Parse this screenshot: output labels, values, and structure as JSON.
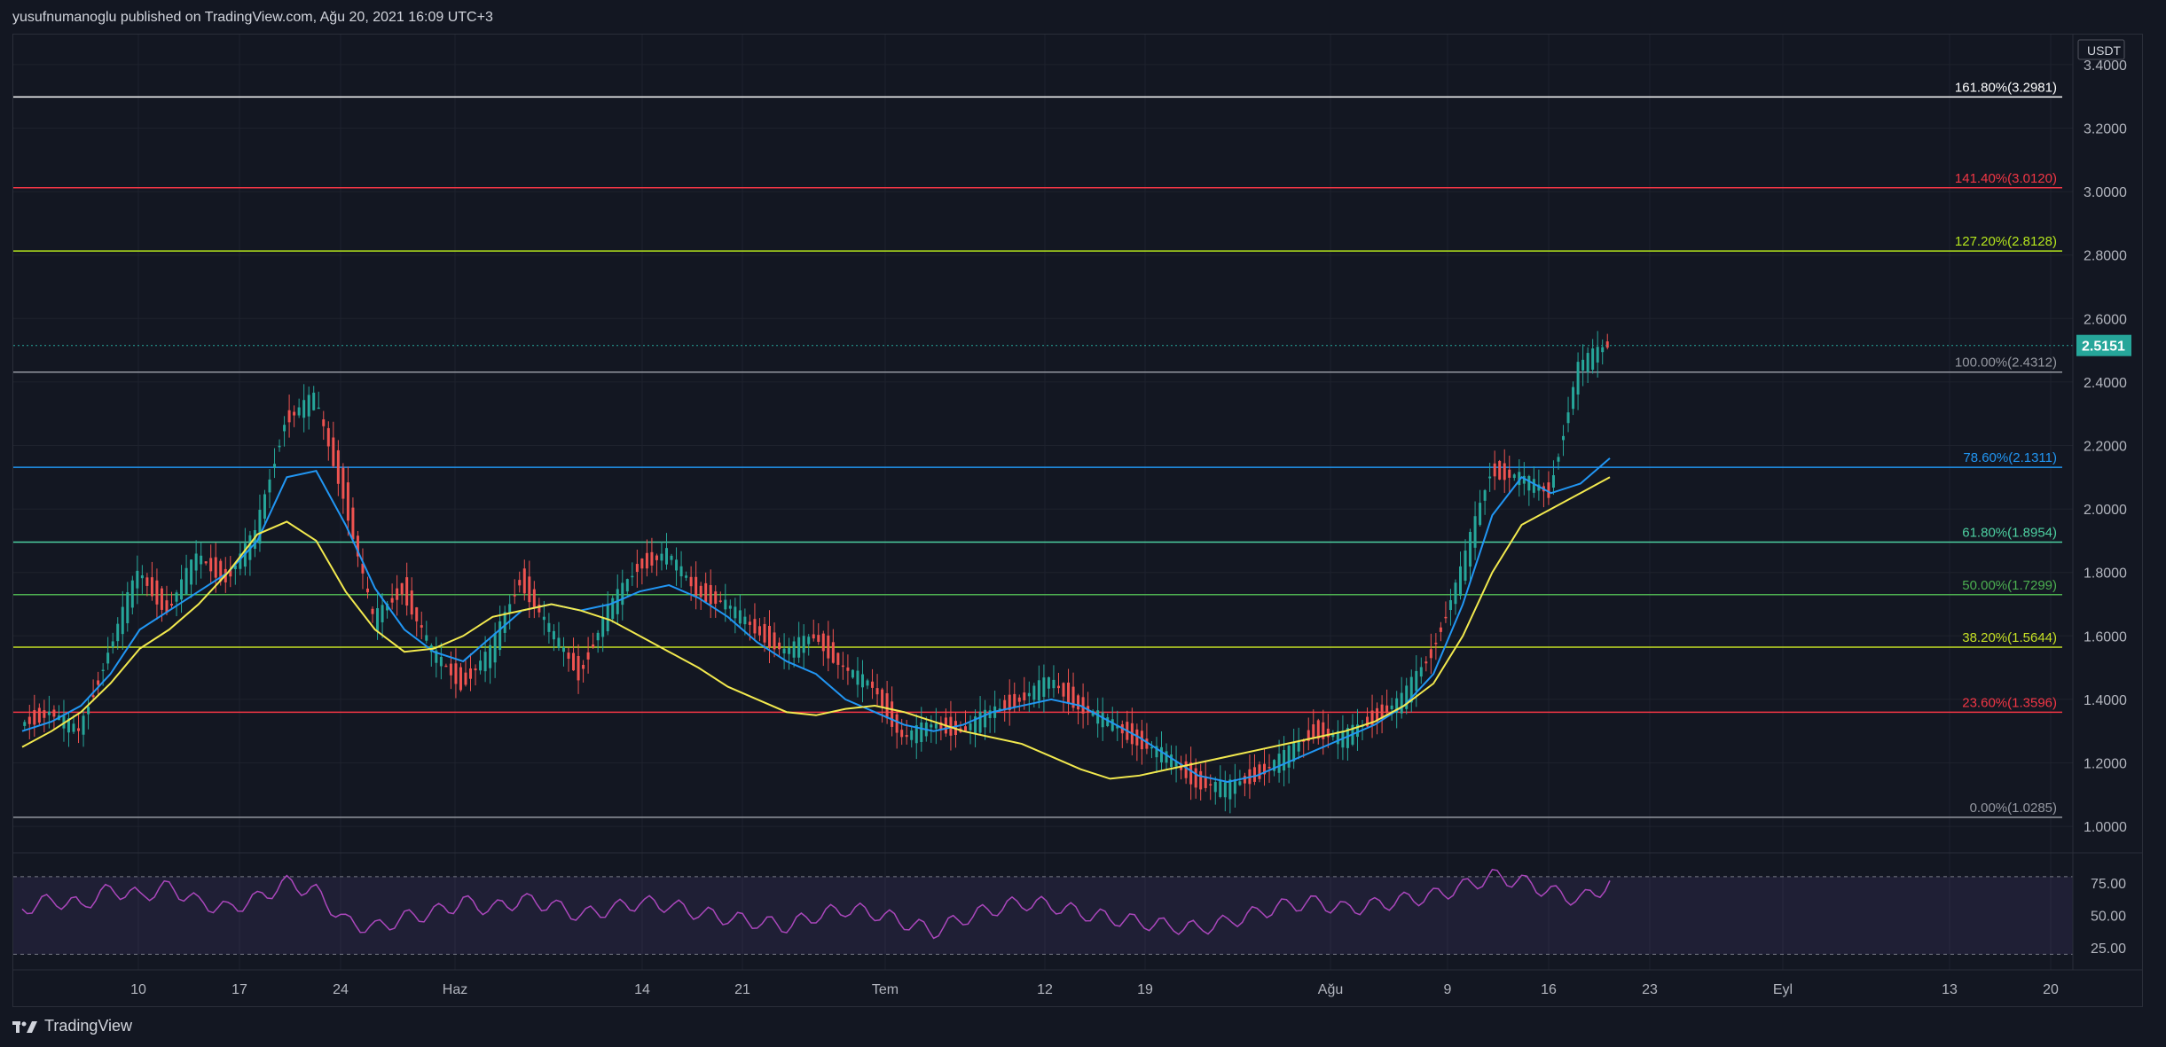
{
  "header": {
    "published_line": "yusufnumanoglu published on TradingView.com, Ağu 20, 2021 16:09 UTC+3"
  },
  "footer": {
    "brand": "TradingView"
  },
  "price_axis": {
    "currency": "USDT",
    "ticks": [
      "3.4000",
      "3.2000",
      "3.0000",
      "2.8000",
      "2.6000",
      "2.4000",
      "2.2000",
      "2.0000",
      "1.8000",
      "1.6000",
      "1.4000",
      "1.2000",
      "1.0000"
    ],
    "last_price": "2.5151",
    "last_price_color": "#26a69a"
  },
  "rsi_axis": {
    "ticks": [
      "75.00",
      "50.00",
      "25.00"
    ]
  },
  "time_axis": {
    "labels": [
      "10",
      "17",
      "24",
      "Haz",
      "14",
      "21",
      "Tem",
      "12",
      "19",
      "Ağu",
      "9",
      "16",
      "23",
      "Eyl",
      "13",
      "20"
    ]
  },
  "fibonacci": [
    {
      "label": "161.80%(3.2981)",
      "value": 3.2981,
      "color": "#ffffff"
    },
    {
      "label": "141.40%(3.0120)",
      "value": 3.012,
      "color": "#f23645"
    },
    {
      "label": "127.20%(2.8128)",
      "value": 2.8128,
      "color": "#b5e61d"
    },
    {
      "label": "100.00%(2.4312)",
      "value": 2.4312,
      "color": "#9598a1"
    },
    {
      "label": "78.60%(2.1311)",
      "value": 2.1311,
      "color": "#2196f3"
    },
    {
      "label": "61.80%(1.8954)",
      "value": 1.8954,
      "color": "#4dd0a1"
    },
    {
      "label": "50.00%(1.7299)",
      "value": 1.7299,
      "color": "#4caf50"
    },
    {
      "label": "38.20%(1.5644)",
      "value": 1.5644,
      "color": "#c6e025"
    },
    {
      "label": "23.60%(1.3596)",
      "value": 1.3596,
      "color": "#f23645"
    },
    {
      "label": "0.00%(1.0285)",
      "value": 1.0285,
      "color": "#9598a1"
    }
  ],
  "chart_data": {
    "type": "candlestick",
    "series": [
      {
        "values": [
          1.32,
          1.36,
          1.3,
          1.55,
          1.8,
          1.68,
          1.85,
          1.78,
          1.92,
          2.28,
          2.35,
          2.05,
          1.65,
          1.75,
          1.55,
          1.45,
          1.55,
          1.78,
          1.62,
          1.48,
          1.68,
          1.82,
          1.86,
          1.74,
          1.7,
          1.62,
          1.55,
          1.6,
          1.5,
          1.44,
          1.28,
          1.32,
          1.3,
          1.36,
          1.4,
          1.46,
          1.38,
          1.33,
          1.27,
          1.22,
          1.14,
          1.12,
          1.16,
          1.22,
          1.3,
          1.28,
          1.34,
          1.4,
          1.55,
          1.8,
          2.12,
          2.1,
          2.05,
          2.45,
          2.52
        ]
      },
      {
        "values": [
          1.3,
          1.33,
          1.38,
          1.48,
          1.62,
          1.68,
          1.74,
          1.8,
          1.9,
          2.1,
          2.12,
          1.95,
          1.75,
          1.62,
          1.55,
          1.52,
          1.6,
          1.68,
          1.7,
          1.68,
          1.7,
          1.74,
          1.76,
          1.72,
          1.66,
          1.58,
          1.52,
          1.48,
          1.4,
          1.36,
          1.32,
          1.3,
          1.32,
          1.36,
          1.38,
          1.4,
          1.38,
          1.33,
          1.28,
          1.22,
          1.16,
          1.14,
          1.16,
          1.2,
          1.24,
          1.28,
          1.32,
          1.38,
          1.48,
          1.7,
          1.98,
          2.1,
          2.05,
          2.08,
          2.16
        ]
      },
      {
        "values": [
          1.25,
          1.3,
          1.36,
          1.45,
          1.56,
          1.62,
          1.7,
          1.8,
          1.92,
          1.96,
          1.9,
          1.74,
          1.62,
          1.55,
          1.56,
          1.6,
          1.66,
          1.68,
          1.7,
          1.68,
          1.65,
          1.6,
          1.55,
          1.5,
          1.44,
          1.4,
          1.36,
          1.35,
          1.37,
          1.38,
          1.36,
          1.33,
          1.3,
          1.28,
          1.26,
          1.22,
          1.18,
          1.15,
          1.16,
          1.18,
          1.2,
          1.22,
          1.24,
          1.26,
          1.28,
          1.3,
          1.33,
          1.38,
          1.45,
          1.6,
          1.8,
          1.95,
          2.0,
          2.05,
          2.1
        ]
      }
    ],
    "ylim": [
      0.95,
      3.45
    ],
    "rsi": [
      55,
      62,
      58,
      70,
      65,
      72,
      60,
      55,
      63,
      75,
      68,
      45,
      40,
      48,
      52,
      60,
      55,
      62,
      58,
      50,
      55,
      60,
      58,
      52,
      48,
      45,
      42,
      50,
      55,
      52,
      45,
      38,
      48,
      55,
      60,
      58,
      52,
      48,
      45,
      42,
      40,
      45,
      52,
      58,
      60,
      55,
      58,
      62,
      65,
      72,
      80,
      76,
      68,
      62,
      74
    ]
  }
}
